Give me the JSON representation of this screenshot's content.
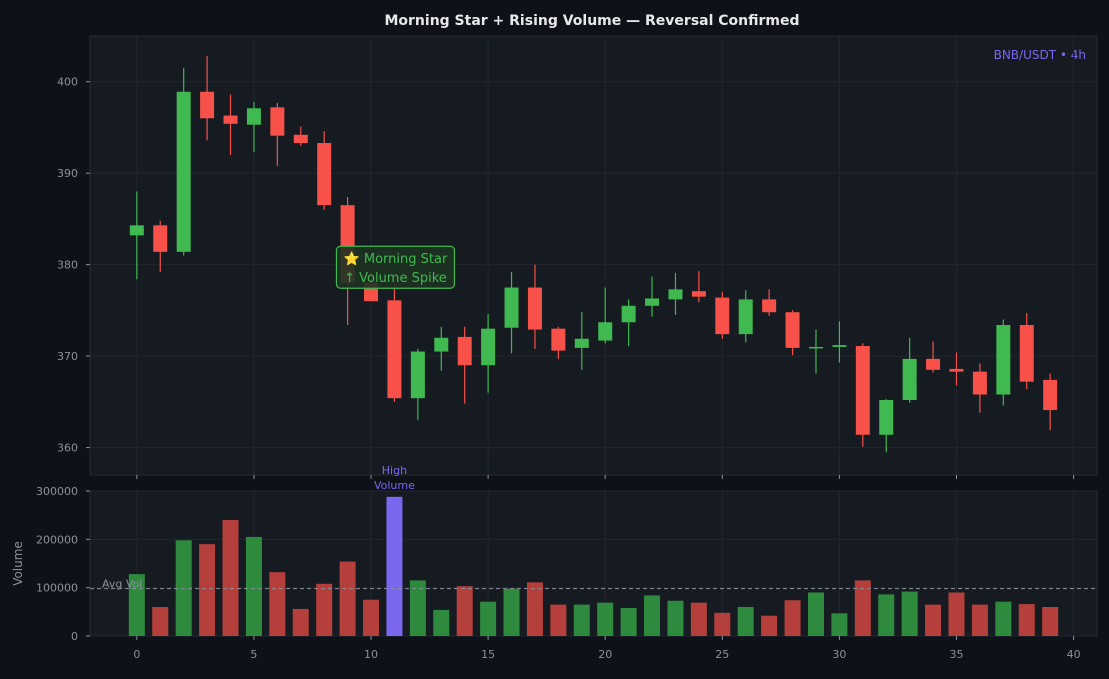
{
  "colors": {
    "background": "#0e1118",
    "panel": "#161a21",
    "grid": "#222731",
    "axis_text": "#8b919b",
    "bullish": "#3fb950",
    "bearish": "#f85149",
    "highlight": "#7b68ee",
    "avg_line": "#8b919b"
  },
  "chart_data": [
    {
      "type": "candlestick",
      "title": "Morning Star + Rising Volume — Reversal Confirmed",
      "symbol_label": "BNB/USDT • 4h",
      "ylim": [
        357,
        405
      ],
      "xlim": [
        -2,
        41
      ],
      "yticks": [
        360,
        370,
        380,
        390,
        400
      ],
      "grid": true,
      "candles": [
        {
          "x": 0,
          "open": 383.2,
          "high": 388.0,
          "low": 378.4,
          "close": 384.3
        },
        {
          "x": 1,
          "open": 384.3,
          "high": 384.8,
          "low": 379.2,
          "close": 381.4
        },
        {
          "x": 2,
          "open": 381.4,
          "high": 401.5,
          "low": 381.0,
          "close": 398.9
        },
        {
          "x": 3,
          "open": 398.9,
          "high": 402.8,
          "low": 393.6,
          "close": 396.0
        },
        {
          "x": 4,
          "open": 396.3,
          "high": 398.6,
          "low": 392.0,
          "close": 395.4
        },
        {
          "x": 5,
          "open": 395.3,
          "high": 397.8,
          "low": 392.3,
          "close": 397.1
        },
        {
          "x": 6,
          "open": 397.2,
          "high": 397.7,
          "low": 390.8,
          "close": 394.1
        },
        {
          "x": 7,
          "open": 394.2,
          "high": 395.1,
          "low": 393.0,
          "close": 393.3
        },
        {
          "x": 8,
          "open": 393.3,
          "high": 394.6,
          "low": 386.0,
          "close": 386.5
        },
        {
          "x": 9,
          "open": 386.5,
          "high": 387.4,
          "low": 373.4,
          "close": 378.0
        },
        {
          "x": 10,
          "open": 378.0,
          "high": 379.2,
          "low": 376.0,
          "close": 376.0
        },
        {
          "x": 11,
          "open": 376.1,
          "high": 377.9,
          "low": 365.0,
          "close": 365.4
        },
        {
          "x": 12,
          "open": 365.4,
          "high": 370.8,
          "low": 363.0,
          "close": 370.5
        },
        {
          "x": 13,
          "open": 370.5,
          "high": 373.2,
          "low": 368.4,
          "close": 372.0
        },
        {
          "x": 14,
          "open": 372.1,
          "high": 373.2,
          "low": 364.8,
          "close": 369.0
        },
        {
          "x": 15,
          "open": 369.0,
          "high": 374.6,
          "low": 366.0,
          "close": 373.0
        },
        {
          "x": 16,
          "open": 373.1,
          "high": 379.2,
          "low": 370.3,
          "close": 377.5
        },
        {
          "x": 17,
          "open": 377.5,
          "high": 380.0,
          "low": 370.8,
          "close": 372.9
        },
        {
          "x": 18,
          "open": 373.0,
          "high": 373.2,
          "low": 369.7,
          "close": 370.6
        },
        {
          "x": 19,
          "open": 370.9,
          "high": 374.8,
          "low": 368.5,
          "close": 371.9
        },
        {
          "x": 20,
          "open": 371.7,
          "high": 377.5,
          "low": 371.4,
          "close": 373.7
        },
        {
          "x": 21,
          "open": 373.7,
          "high": 376.2,
          "low": 371.1,
          "close": 375.5
        },
        {
          "x": 22,
          "open": 375.5,
          "high": 378.7,
          "low": 374.3,
          "close": 376.3
        },
        {
          "x": 23,
          "open": 376.2,
          "high": 379.1,
          "low": 374.5,
          "close": 377.3
        },
        {
          "x": 24,
          "open": 377.1,
          "high": 379.3,
          "low": 375.9,
          "close": 376.5
        },
        {
          "x": 25,
          "open": 376.4,
          "high": 377.0,
          "low": 371.9,
          "close": 372.4
        },
        {
          "x": 26,
          "open": 372.4,
          "high": 377.2,
          "low": 371.5,
          "close": 376.2
        },
        {
          "x": 27,
          "open": 376.2,
          "high": 377.3,
          "low": 374.4,
          "close": 374.8
        },
        {
          "x": 28,
          "open": 374.8,
          "high": 375.0,
          "low": 370.1,
          "close": 370.9
        },
        {
          "x": 29,
          "open": 370.9,
          "high": 372.9,
          "low": 368.1,
          "close": 371.0
        },
        {
          "x": 30,
          "open": 371.0,
          "high": 373.8,
          "low": 369.3,
          "close": 371.2
        },
        {
          "x": 31,
          "open": 371.1,
          "high": 371.4,
          "low": 360.1,
          "close": 361.4
        },
        {
          "x": 32,
          "open": 361.4,
          "high": 365.3,
          "low": 359.5,
          "close": 365.2
        },
        {
          "x": 33,
          "open": 365.2,
          "high": 372.0,
          "low": 364.9,
          "close": 369.7
        },
        {
          "x": 34,
          "open": 369.7,
          "high": 371.6,
          "low": 368.2,
          "close": 368.5
        },
        {
          "x": 35,
          "open": 368.6,
          "high": 370.4,
          "low": 366.8,
          "close": 368.3
        },
        {
          "x": 36,
          "open": 368.3,
          "high": 369.2,
          "low": 363.8,
          "close": 365.8
        },
        {
          "x": 37,
          "open": 365.8,
          "high": 374.0,
          "low": 364.6,
          "close": 373.4
        },
        {
          "x": 38,
          "open": 373.4,
          "high": 374.7,
          "low": 366.4,
          "close": 367.2
        },
        {
          "x": 39,
          "open": 367.4,
          "high": 368.1,
          "low": 361.9,
          "close": 364.1
        }
      ],
      "annotation": {
        "x": 11,
        "y": 379.5,
        "lines": [
          "⭐ Morning Star",
          "↑ Volume Spike"
        ]
      }
    },
    {
      "type": "bar",
      "ylabel": "Volume",
      "ylim": [
        0,
        300000
      ],
      "xlim": [
        -2,
        41
      ],
      "yticks": [
        0,
        100000,
        200000,
        300000
      ],
      "xticks": [
        0,
        5,
        10,
        15,
        20,
        25,
        30,
        35,
        40
      ],
      "avg_line": {
        "value": 98000,
        "label": "Avg Vol"
      },
      "highlight": {
        "x": 11,
        "label_lines": [
          "High",
          "Volume"
        ]
      },
      "x": [
        0,
        1,
        2,
        3,
        4,
        5,
        6,
        7,
        8,
        9,
        10,
        11,
        12,
        13,
        14,
        15,
        16,
        17,
        18,
        19,
        20,
        21,
        22,
        23,
        24,
        25,
        26,
        27,
        28,
        29,
        30,
        31,
        32,
        33,
        34,
        35,
        36,
        37,
        38,
        39
      ],
      "values": [
        128000,
        60000,
        198000,
        190000,
        240000,
        205000,
        132000,
        56000,
        108000,
        154000,
        75000,
        288000,
        115000,
        54000,
        103000,
        71000,
        98000,
        111000,
        65000,
        65000,
        69000,
        58000,
        84000,
        73000,
        69000,
        48000,
        60000,
        42000,
        74000,
        90000,
        47000,
        115000,
        86000,
        92000,
        65000,
        90000,
        65000,
        71000,
        66000,
        60000
      ]
    }
  ]
}
